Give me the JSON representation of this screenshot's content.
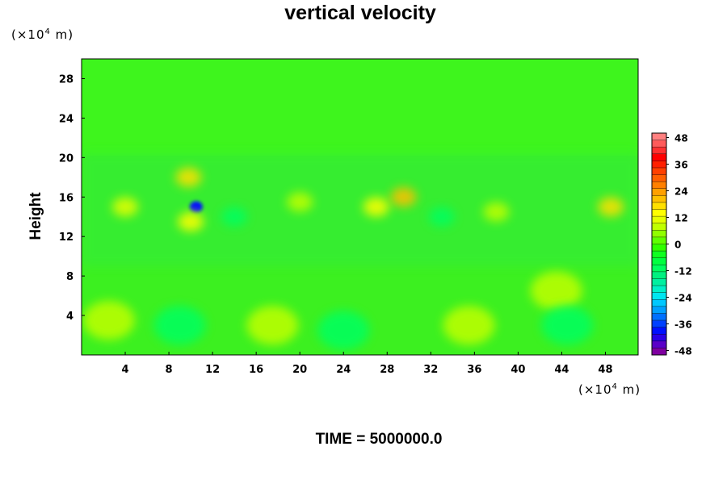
{
  "chart_data": {
    "type": "heatmap",
    "title": "vertical velocity",
    "ylabel": "Height",
    "xlabel": "",
    "y_unit": {
      "prefix": "(×10",
      "exp": "4",
      "suffix": " m)"
    },
    "x_unit": {
      "prefix": "(×10",
      "exp": "4",
      "suffix": " m)"
    },
    "xlim": [
      0,
      51
    ],
    "ylim": [
      0,
      30
    ],
    "x_ticks": [
      "4",
      "8",
      "12",
      "16",
      "20",
      "24",
      "28",
      "32",
      "36",
      "40",
      "44",
      "48"
    ],
    "y_ticks": [
      "4",
      "8",
      "12",
      "16",
      "20",
      "24",
      "28"
    ],
    "colorbar": {
      "range": [
        -50,
        50
      ],
      "ticks": [
        "48",
        "36",
        "24",
        "12",
        "0",
        "-12",
        "-24",
        "-36",
        "-48"
      ],
      "colors": [
        "#7f00a0",
        "#5a00c8",
        "#2a00e6",
        "#0010ff",
        "#0040ff",
        "#0070ff",
        "#00a0ff",
        "#00c8ff",
        "#00e6f0",
        "#00f0c8",
        "#00f0a0",
        "#00f080",
        "#00ff60",
        "#00ff40",
        "#10ff20",
        "#30ff00",
        "#60ff00",
        "#90ff00",
        "#c0ff00",
        "#e6ff00",
        "#ffff00",
        "#ffe000",
        "#ffc000",
        "#ffa000",
        "#ff8000",
        "#ff6000",
        "#ff4000",
        "#ff2000",
        "#ff0000",
        "#ff3030",
        "#ff5a5a",
        "#ff8080"
      ]
    },
    "features": [
      {
        "x": 10.5,
        "y": 15.0,
        "value": -38
      },
      {
        "x": 9.8,
        "y": 18.0,
        "value": 18
      },
      {
        "x": 10.0,
        "y": 13.5,
        "value": 14
      },
      {
        "x": 27.0,
        "y": 15.0,
        "value": 14
      },
      {
        "x": 29.5,
        "y": 16.0,
        "value": 20
      },
      {
        "x": 48.5,
        "y": 15.0,
        "value": 18
      },
      {
        "x": 43.5,
        "y": 6.5,
        "value": 8
      },
      {
        "x": 2.5,
        "y": 3.5,
        "value": 8
      },
      {
        "x": 17.5,
        "y": 3.0,
        "value": 7
      },
      {
        "x": 35.5,
        "y": 3.0,
        "value": 8
      },
      {
        "x": 9.0,
        "y": 3.0,
        "value": -12
      },
      {
        "x": 24.0,
        "y": 2.5,
        "value": -12
      },
      {
        "x": 44.5,
        "y": 3.0,
        "value": -12
      },
      {
        "x": 4.0,
        "y": 15.0,
        "value": 10
      },
      {
        "x": 20.0,
        "y": 15.5,
        "value": 8
      },
      {
        "x": 38.0,
        "y": 14.5,
        "value": 8
      },
      {
        "x": 14.0,
        "y": 14.0,
        "value": -10
      },
      {
        "x": 33.0,
        "y": 14.0,
        "value": -10
      }
    ]
  },
  "footer": {
    "time_label": "TIME = 5000000.0"
  }
}
